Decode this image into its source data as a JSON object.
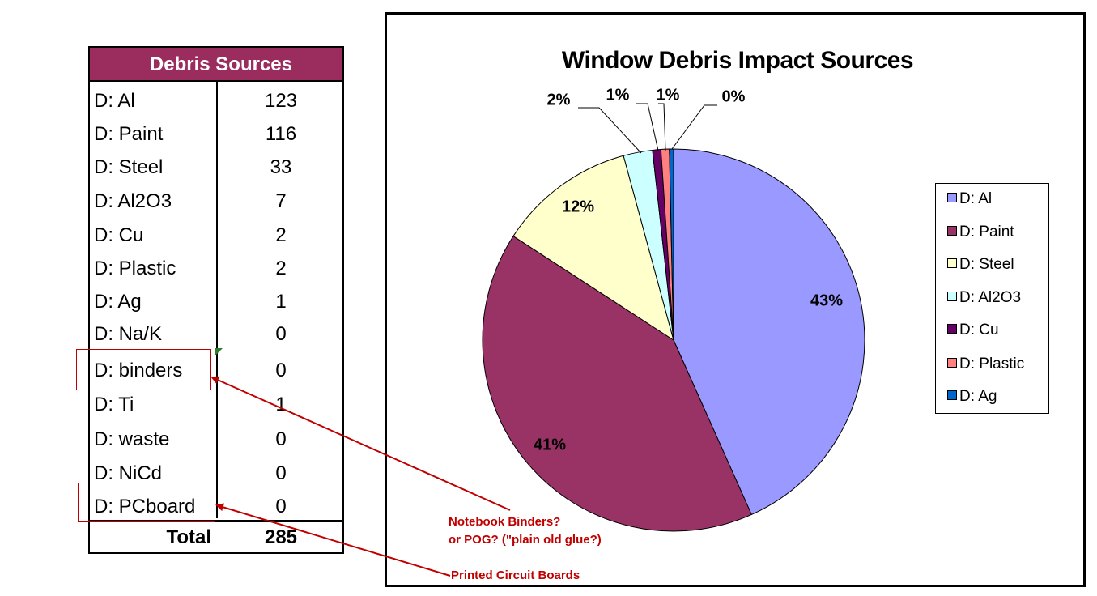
{
  "table": {
    "header": "Debris Sources",
    "rows": [
      {
        "label": "D: Al",
        "value": "123"
      },
      {
        "label": "D: Paint",
        "value": "116"
      },
      {
        "label": "D: Steel",
        "value": "33"
      },
      {
        "label": "D: Al2O3",
        "value": "7"
      },
      {
        "label": "D: Cu",
        "value": "2"
      },
      {
        "label": "D: Plastic",
        "value": "2"
      },
      {
        "label": "D: Ag",
        "value": "1"
      },
      {
        "label": "D: Na/K",
        "value": "0"
      },
      {
        "label": "D: binders",
        "value": "0"
      },
      {
        "label": "D: Ti",
        "value": "1"
      },
      {
        "label": "D: waste",
        "value": "0"
      },
      {
        "label": "D: NiCd",
        "value": "0"
      },
      {
        "label": "D: PCboard",
        "value": "0"
      }
    ],
    "total_label": "Total",
    "total_value": "285",
    "header_color": "#9b2d5e"
  },
  "annotations": {
    "binders_note_line1": "Notebook Binders?",
    "binders_note_line2": "or POG?  (\"plain old glue?)",
    "pcboard_note": "Printed Circuit Boards",
    "color": "#c00000"
  },
  "chart_data": {
    "type": "pie",
    "title": "Window Debris Impact Sources",
    "legend_position": "right",
    "slices": [
      {
        "name": "D: Al",
        "value": 123,
        "label": "43%",
        "color": "#9999ff"
      },
      {
        "name": "D: Paint",
        "value": 116,
        "label": "41%",
        "color": "#993366"
      },
      {
        "name": "D: Steel",
        "value": 33,
        "label": "12%",
        "color": "#ffffcc"
      },
      {
        "name": "D: Al2O3",
        "value": 7,
        "label": "2%",
        "color": "#ccffff"
      },
      {
        "name": "D: Cu",
        "value": 2,
        "label": "1%",
        "color": "#660066"
      },
      {
        "name": "D: Plastic",
        "value": 2,
        "label": "1%",
        "color": "#ff8080"
      },
      {
        "name": "D: Ag",
        "value": 1,
        "label": "0%",
        "color": "#0066cc"
      }
    ]
  }
}
